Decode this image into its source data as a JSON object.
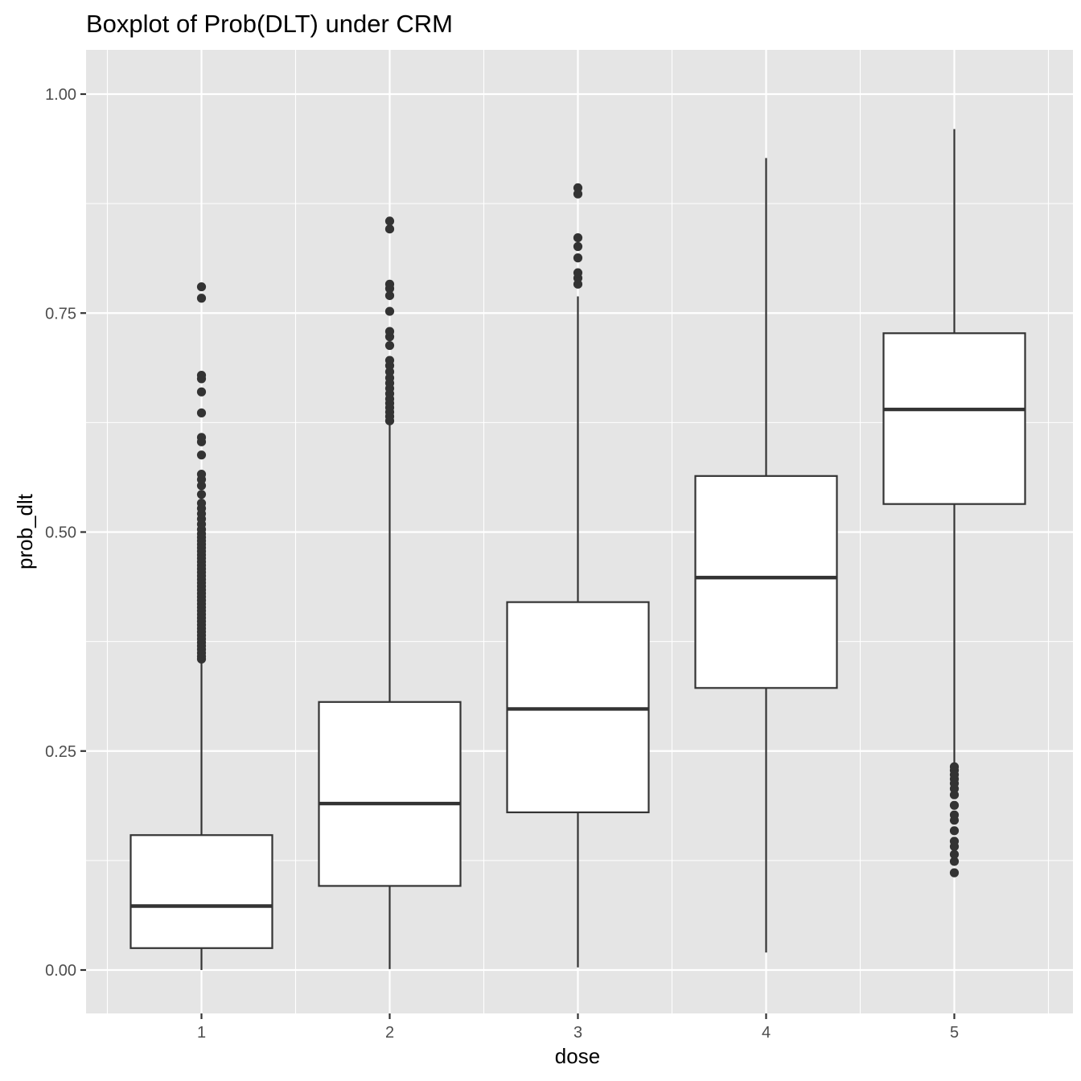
{
  "chart_data": {
    "type": "boxplot",
    "title": "Boxplot of Prob(DLT) under CRM",
    "xlabel": "dose",
    "ylabel": "prob_dlt",
    "categories": [
      "1",
      "2",
      "3",
      "4",
      "5"
    ],
    "ylim": [
      -0.05,
      1.05
    ],
    "y_ticks": [
      0.0,
      0.25,
      0.5,
      0.75,
      1.0
    ],
    "y_tick_labels": [
      "0.00",
      "0.25",
      "0.50",
      "0.75",
      "1.00"
    ],
    "grid": true,
    "legend": "none",
    "colors": {
      "panel_background": "#e5e5e5",
      "grid_major": "#ffffff",
      "box_fill": "#ffffff",
      "box_stroke": "#333333",
      "outlier": "#333333",
      "tick_mark": "#333333",
      "tick_label": "#4d4d4d"
    },
    "boxes": [
      {
        "dose": "1",
        "lower_whisker": 0.0,
        "q1": 0.025,
        "median": 0.073,
        "q3": 0.154,
        "upper_whisker": 0.352,
        "outliers": [
          0.355,
          0.358,
          0.362,
          0.366,
          0.37,
          0.374,
          0.378,
          0.382,
          0.386,
          0.39,
          0.394,
          0.398,
          0.402,
          0.406,
          0.41,
          0.414,
          0.418,
          0.422,
          0.426,
          0.43,
          0.434,
          0.438,
          0.442,
          0.446,
          0.45,
          0.454,
          0.458,
          0.462,
          0.466,
          0.47,
          0.474,
          0.478,
          0.482,
          0.486,
          0.49,
          0.494,
          0.498,
          0.503,
          0.509,
          0.515,
          0.521,
          0.527,
          0.533,
          0.543,
          0.553,
          0.56,
          0.566,
          0.588,
          0.603,
          0.608,
          0.636,
          0.66,
          0.675,
          0.679,
          0.767,
          0.78
        ]
      },
      {
        "dose": "2",
        "lower_whisker": 0.001,
        "q1": 0.096,
        "median": 0.19,
        "q3": 0.306,
        "upper_whisker": 0.624,
        "outliers": [
          0.627,
          0.632,
          0.637,
          0.642,
          0.647,
          0.652,
          0.658,
          0.664,
          0.67,
          0.676,
          0.683,
          0.69,
          0.696,
          0.713,
          0.723,
          0.729,
          0.752,
          0.77,
          0.778,
          0.783,
          0.846,
          0.855
        ]
      },
      {
        "dose": "3",
        "lower_whisker": 0.003,
        "q1": 0.18,
        "median": 0.298,
        "q3": 0.42,
        "upper_whisker": 0.769,
        "outliers": [
          0.783,
          0.79,
          0.796,
          0.813,
          0.826,
          0.836,
          0.886,
          0.893
        ]
      },
      {
        "dose": "4",
        "lower_whisker": 0.02,
        "q1": 0.322,
        "median": 0.448,
        "q3": 0.564,
        "upper_whisker": 0.927,
        "outliers": []
      },
      {
        "dose": "5",
        "lower_whisker": 0.235,
        "q1": 0.532,
        "median": 0.64,
        "q3": 0.727,
        "upper_whisker": 0.96,
        "outliers": [
          0.111,
          0.124,
          0.132,
          0.141,
          0.147,
          0.159,
          0.171,
          0.177,
          0.188,
          0.2,
          0.207,
          0.213,
          0.218,
          0.223,
          0.228,
          0.232
        ]
      }
    ]
  }
}
